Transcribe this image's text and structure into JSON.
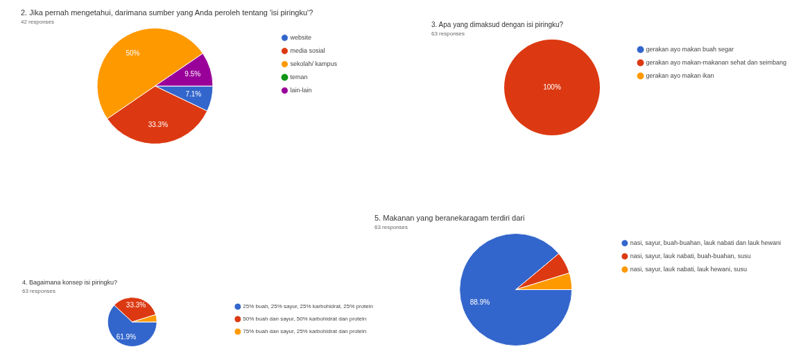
{
  "chart_data": [
    {
      "type": "pie",
      "title": "2. Jika pernah mengetahui, darimana sumber yang Anda peroleh tentang 'isi piringku'?",
      "subtitle": "42 responses",
      "categories": [
        "website",
        "media sosial",
        "sekolah/ kampus",
        "teman",
        "lain-lain"
      ],
      "values": [
        7.1,
        33.3,
        50,
        0,
        9.5
      ],
      "colors": [
        "#3366cc",
        "#dc3912",
        "#ff9900",
        "#109618",
        "#990099"
      ],
      "value_labels": [
        "7.1%",
        "33.3%",
        "50%",
        null,
        "9.5%"
      ],
      "legend": "right"
    },
    {
      "type": "pie",
      "title": "3. Apa yang dimaksud dengan isi piringku?",
      "subtitle": "63 responses",
      "categories": [
        "gerakan ayo makan buah segar",
        "gerakan ayo makan-makanan sehat dan seimbang",
        "gerakan ayo makan ikan"
      ],
      "values": [
        0,
        100,
        0
      ],
      "colors": [
        "#3366cc",
        "#dc3912",
        "#ff9900"
      ],
      "value_labels": [
        null,
        "100%",
        null
      ],
      "legend": "right"
    },
    {
      "type": "pie",
      "title": "4. Bagaimana konsep isi piringku?",
      "subtitle": "63 responses",
      "categories": [
        "25% buah, 25% sayur, 25% karbohidrat, 25% protein",
        "50% buah dan sayur, 50% karbohidrat dan protein",
        "75% buah dan sayur, 25% karbohidrat dan protein"
      ],
      "values": [
        61.9,
        33.3,
        4.8
      ],
      "colors": [
        "#3366cc",
        "#dc3912",
        "#ff9900"
      ],
      "value_labels": [
        "61.9%",
        "33.3%",
        null
      ],
      "legend": "right"
    },
    {
      "type": "pie",
      "title": "5. Makanan yang beranekaragam terdiri dari",
      "subtitle": "63 responses",
      "categories": [
        "nasi, sayur, buah-buahan, lauk nabati dan lauk hewani",
        "nasi, sayur, lauk nabati, buah-buahan, susu",
        "nasi, sayur, lauk nabati, lauk hewani, susu"
      ],
      "values": [
        88.9,
        6.3,
        4.8
      ],
      "colors": [
        "#3366cc",
        "#dc3912",
        "#ff9900"
      ],
      "value_labels": [
        "88.9%",
        null,
        null
      ],
      "legend": "right"
    }
  ]
}
